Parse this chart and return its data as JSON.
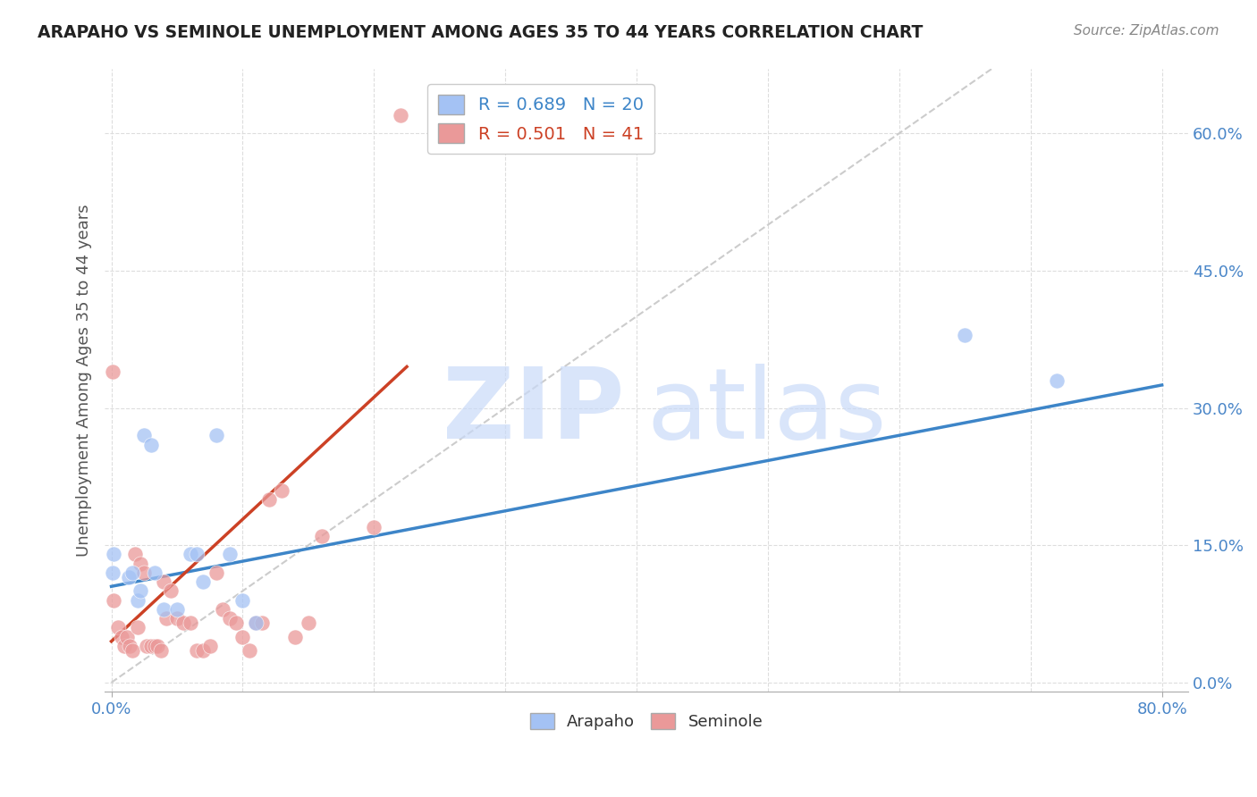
{
  "title": "ARAPAHO VS SEMINOLE UNEMPLOYMENT AMONG AGES 35 TO 44 YEARS CORRELATION CHART",
  "source": "Source: ZipAtlas.com",
  "ylabel": "Unemployment Among Ages 35 to 44 years",
  "xlim": [
    -0.005,
    0.82
  ],
  "ylim": [
    -0.01,
    0.67
  ],
  "xtick_positions": [
    0.0,
    0.8
  ],
  "xtick_labels": [
    "0.0%",
    "80.0%"
  ],
  "ytick_positions": [
    0.0,
    0.15,
    0.3,
    0.45,
    0.6
  ],
  "ytick_labels": [
    "0.0%",
    "15.0%",
    "30.0%",
    "45.0%",
    "60.0%"
  ],
  "arapaho_color": "#a4c2f4",
  "seminole_color": "#ea9999",
  "arapaho_line_color": "#3d85c8",
  "seminole_line_color": "#cc4125",
  "diagonal_color": "#cccccc",
  "tick_color": "#4a86c8",
  "arapaho_R": 0.689,
  "arapaho_N": 20,
  "seminole_R": 0.501,
  "seminole_N": 41,
  "watermark_zip": "ZIP",
  "watermark_atlas": "atlas",
  "watermark_color": "#c9daf8",
  "arapaho_x": [
    0.001,
    0.002,
    0.013,
    0.016,
    0.02,
    0.022,
    0.025,
    0.03,
    0.033,
    0.04,
    0.05,
    0.06,
    0.065,
    0.07,
    0.08,
    0.09,
    0.1,
    0.11,
    0.65,
    0.72
  ],
  "arapaho_y": [
    0.12,
    0.14,
    0.115,
    0.12,
    0.09,
    0.1,
    0.27,
    0.26,
    0.12,
    0.08,
    0.08,
    0.14,
    0.14,
    0.11,
    0.27,
    0.14,
    0.09,
    0.065,
    0.38,
    0.33
  ],
  "arapaho_line_x": [
    0.0,
    0.8
  ],
  "arapaho_line_y": [
    0.105,
    0.325
  ],
  "seminole_x": [
    0.001,
    0.002,
    0.005,
    0.008,
    0.01,
    0.012,
    0.014,
    0.016,
    0.018,
    0.02,
    0.022,
    0.025,
    0.027,
    0.03,
    0.033,
    0.035,
    0.038,
    0.04,
    0.042,
    0.045,
    0.05,
    0.055,
    0.06,
    0.065,
    0.07,
    0.075,
    0.08,
    0.085,
    0.09,
    0.095,
    0.1,
    0.105,
    0.11,
    0.115,
    0.12,
    0.13,
    0.14,
    0.15,
    0.16,
    0.2,
    0.22
  ],
  "seminole_y": [
    0.34,
    0.09,
    0.06,
    0.05,
    0.04,
    0.05,
    0.04,
    0.035,
    0.14,
    0.06,
    0.13,
    0.12,
    0.04,
    0.04,
    0.04,
    0.04,
    0.035,
    0.11,
    0.07,
    0.1,
    0.07,
    0.065,
    0.065,
    0.035,
    0.035,
    0.04,
    0.12,
    0.08,
    0.07,
    0.065,
    0.05,
    0.035,
    0.065,
    0.065,
    0.2,
    0.21,
    0.05,
    0.065,
    0.16,
    0.17,
    0.62
  ],
  "seminole_line_x": [
    0.0,
    0.225
  ],
  "seminole_line_y": [
    0.045,
    0.345
  ]
}
